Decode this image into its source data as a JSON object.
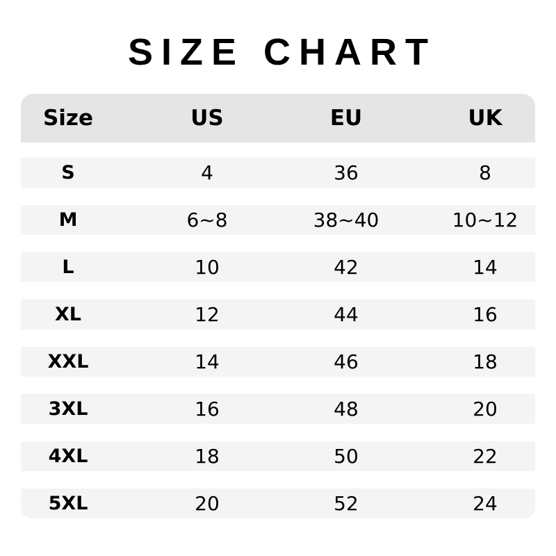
{
  "title": "SIZE CHART",
  "colors": {
    "header_bg": "#e5e5e5",
    "row_bg": "#f4f4f4",
    "text": "#000000"
  },
  "columns": [
    "Size",
    "US",
    "EU",
    "UK"
  ],
  "rows": [
    [
      "S",
      "4",
      "36",
      "8"
    ],
    [
      "M",
      "6~8",
      "38~40",
      "10~12"
    ],
    [
      "L",
      "10",
      "42",
      "14"
    ],
    [
      "XL",
      "12",
      "44",
      "16"
    ],
    [
      "XXL",
      "14",
      "46",
      "18"
    ],
    [
      "3XL",
      "16",
      "48",
      "20"
    ],
    [
      "4XL",
      "18",
      "50",
      "22"
    ],
    [
      "5XL",
      "20",
      "52",
      "24"
    ]
  ]
}
